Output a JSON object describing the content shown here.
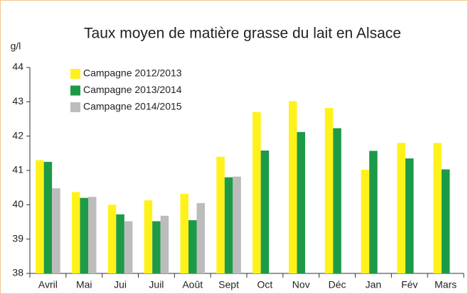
{
  "chart_data": {
    "type": "bar",
    "title": "Taux moyen de matière grasse du lait en Alsace",
    "y_label": "g/l",
    "categories": [
      "Avril",
      "Mai",
      "Jui",
      "Juil",
      "Août",
      "Sept",
      "Oct",
      "Nov",
      "Déc",
      "Jan",
      "Fév",
      "Mars"
    ],
    "series": [
      {
        "name": "Campagne 2012/2013",
        "color": "#fff21a",
        "values": [
          41.3,
          40.37,
          40.0,
          40.13,
          40.32,
          41.4,
          42.7,
          43.02,
          42.82,
          41.02,
          41.8,
          41.8
        ]
      },
      {
        "name": "Campagne 2013/2014",
        "color": "#1d9a48",
        "values": [
          41.25,
          40.2,
          39.72,
          39.52,
          39.55,
          40.8,
          41.58,
          42.12,
          42.23,
          41.57,
          41.35,
          41.03
        ]
      },
      {
        "name": "Campagne 2014/2015",
        "color": "#bcbcbc",
        "values": [
          40.48,
          40.23,
          39.52,
          39.68,
          40.05,
          40.82,
          null,
          null,
          null,
          null,
          null,
          null
        ]
      }
    ],
    "ylim": [
      38,
      44
    ],
    "yticks": [
      38,
      39,
      40,
      41,
      42,
      43,
      44
    ],
    "grid": false,
    "legend": "top-left"
  }
}
